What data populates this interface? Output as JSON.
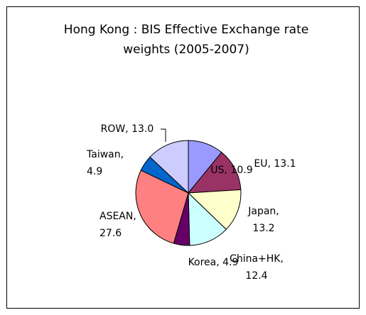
{
  "chart_data": {
    "type": "pie",
    "title": "Hong Kong : BIS Effective Exchange rate\nweights (2005-2007)",
    "values": [
      10.9,
      13.1,
      13.2,
      12.4,
      4.9,
      27.6,
      4.9,
      13.0
    ],
    "value_labels": [
      "US, 10.9",
      "EU, 13.1",
      "Japan,\n13.2",
      "China+HK,\n12.4",
      "Korea, 4.9",
      "ASEAN,\n27.6",
      "Taiwan,\n4.9",
      "ROW, 13.0"
    ],
    "colors": [
      "#9999ff",
      "#993366",
      "#ffffcc",
      "#ccffff",
      "#660066",
      "#ff8080",
      "#0066cc",
      "#ccccff"
    ]
  }
}
